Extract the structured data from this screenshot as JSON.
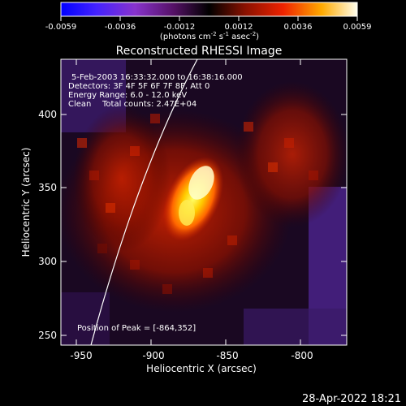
{
  "colorbar": {
    "ticks": [
      "-0.0059",
      "-0.0036",
      "-0.0012",
      "0.0012",
      "0.0036",
      "0.0059"
    ],
    "units_main": "(photons cm",
    "units_exp1": "-2",
    "units_mid": " s",
    "units_exp2": "-1",
    "units_mid2": " asec",
    "units_exp3": "-2",
    "units_end": ")"
  },
  "image": {
    "title": "Reconstructed RHESSI Image",
    "time_range": "5-Feb-2003 16:33:32.000 to 16:38:16.000",
    "detectors": "Detectors: 3F 4F 5F 6F 7F 8F, Att 0",
    "energy_range": "Energy Range: 6.0 - 12.0 keV",
    "clean_label": "Clean",
    "total_counts": "Total counts: 2.47E+04",
    "peak_position": "Position of Peak = [-864,352]"
  },
  "axes": {
    "x_title": "Heliocentric X (arcsec)",
    "y_title": "Heliocentric Y (arcsec)",
    "x_ticks": [
      "-950",
      "-900",
      "-850",
      "-800"
    ],
    "y_ticks": [
      "400",
      "350",
      "300",
      "250"
    ]
  },
  "footer": {
    "timestamp": "28-Apr-2022 18:21"
  },
  "colors": {
    "background": "#000000",
    "foreground": "#ffffff"
  }
}
